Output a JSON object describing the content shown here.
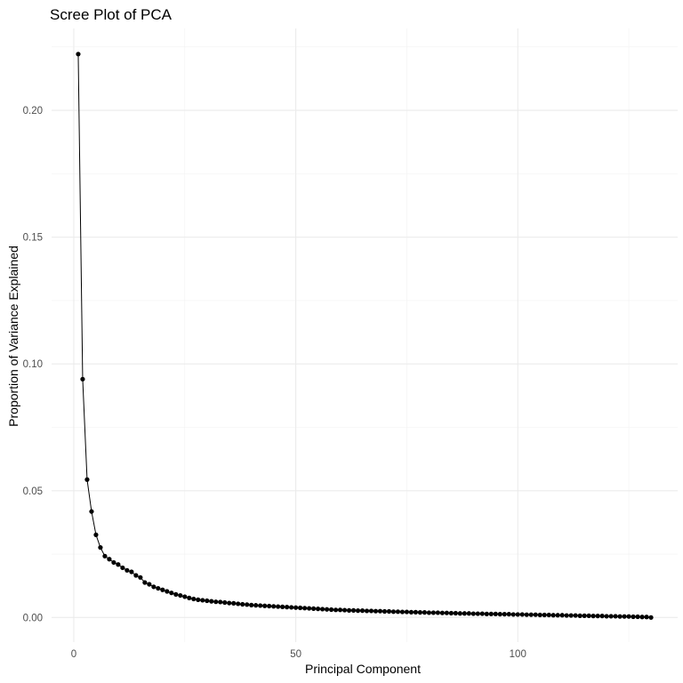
{
  "chart_data": {
    "type": "line",
    "title": "Scree Plot of PCA",
    "xlabel": "Principal Component",
    "ylabel": "Proportion of Variance Explained",
    "xlim": [
      -5,
      136
    ],
    "ylim": [
      -0.0097,
      0.2323
    ],
    "x_ticks": [
      0,
      50,
      100
    ],
    "x_tick_labels": [
      "0",
      "50",
      "100"
    ],
    "x_minor_ticks": [
      25,
      75,
      125
    ],
    "y_ticks": [
      0.0,
      0.05,
      0.1,
      0.15,
      0.2
    ],
    "y_tick_labels": [
      "0.00",
      "0.05",
      "0.10",
      "0.15",
      "0.20"
    ],
    "y_minor_ticks": [
      0.025,
      0.075,
      0.125,
      0.175,
      0.225
    ],
    "grid": true,
    "legend": "none",
    "colors": {
      "line": "#000000",
      "points": "#000000",
      "grid": "#ebebeb",
      "tick_text": "#4d4d4d"
    },
    "series": [
      {
        "x": [
          1,
          2,
          3,
          4,
          5,
          6,
          7,
          8,
          9,
          10,
          11,
          12,
          13,
          14,
          15,
          16,
          17,
          18,
          19,
          20,
          21,
          22,
          23,
          24,
          25,
          26,
          27,
          28,
          29,
          30,
          31,
          32,
          33,
          34,
          35,
          36,
          37,
          38,
          39,
          40,
          41,
          42,
          43,
          44,
          45,
          46,
          47,
          48,
          49,
          50,
          51,
          52,
          53,
          54,
          55,
          56,
          57,
          58,
          59,
          60,
          61,
          62,
          63,
          64,
          65,
          66,
          67,
          68,
          69,
          70,
          71,
          72,
          73,
          74,
          75,
          76,
          77,
          78,
          79,
          80,
          81,
          82,
          83,
          84,
          85,
          86,
          87,
          88,
          89,
          90,
          91,
          92,
          93,
          94,
          95,
          96,
          97,
          98,
          99,
          100,
          101,
          102,
          103,
          104,
          105,
          106,
          107,
          108,
          109,
          110,
          111,
          112,
          113,
          114,
          115,
          116,
          117,
          118,
          119,
          120,
          121,
          122,
          123,
          124,
          125,
          126,
          127,
          128,
          129,
          130
        ],
        "y": [
          0.2222,
          0.094,
          0.0544,
          0.0418,
          0.0326,
          0.0276,
          0.0242,
          0.023,
          0.0217,
          0.0209,
          0.0196,
          0.0186,
          0.018,
          0.0166,
          0.0158,
          0.0138,
          0.0131,
          0.0121,
          0.0115,
          0.0109,
          0.0103,
          0.0097,
          0.0091,
          0.0087,
          0.0082,
          0.0077,
          0.0073,
          0.007,
          0.0068,
          0.0066,
          0.0064,
          0.0062,
          0.0061,
          0.0059,
          0.0057,
          0.0056,
          0.0054,
          0.0052,
          0.0051,
          0.0049,
          0.0048,
          0.0047,
          0.0046,
          0.0045,
          0.0044,
          0.0043,
          0.0042,
          0.0041,
          0.004,
          0.0039,
          0.0038,
          0.0037,
          0.0036,
          0.0035,
          0.0034,
          0.0033,
          0.0032,
          0.0031,
          0.003,
          0.003,
          0.0029,
          0.0028,
          0.0028,
          0.0027,
          0.0027,
          0.0026,
          0.0026,
          0.0025,
          0.0025,
          0.0024,
          0.0024,
          0.0023,
          0.0023,
          0.0022,
          0.0022,
          0.0021,
          0.0021,
          0.002,
          0.002,
          0.0019,
          0.0019,
          0.0019,
          0.0018,
          0.0018,
          0.0017,
          0.0017,
          0.0016,
          0.0016,
          0.0016,
          0.0015,
          0.0015,
          0.0015,
          0.0014,
          0.0014,
          0.0014,
          0.0013,
          0.0013,
          0.0013,
          0.0012,
          0.0012,
          0.0012,
          0.0011,
          0.0011,
          0.0011,
          0.001,
          0.001,
          0.001,
          0.0009,
          0.0009,
          0.0009,
          0.0008,
          0.0008,
          0.0008,
          0.0007,
          0.0007,
          0.0007,
          0.0006,
          0.0006,
          0.0006,
          0.0005,
          0.0005,
          0.0005,
          0.0004,
          0.0004,
          0.0004,
          0.0003,
          0.0003,
          0.0002,
          0.0002,
          0.0
        ]
      }
    ]
  }
}
